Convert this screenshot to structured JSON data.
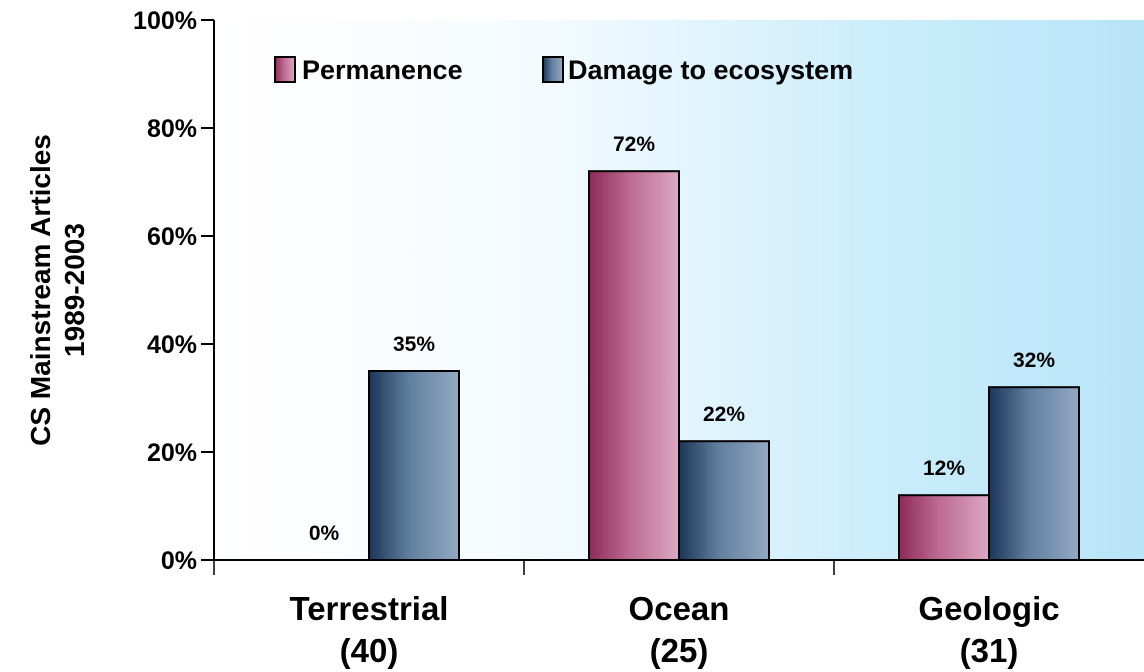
{
  "chart_data": {
    "type": "bar",
    "categories": [
      "Terrestrial",
      "Ocean",
      "Geologic"
    ],
    "category_counts": [
      "(40)",
      "(25)",
      "(31)"
    ],
    "series": [
      {
        "name": "Permanence",
        "values": [
          0,
          72,
          12
        ],
        "labels": [
          "0%",
          "72%",
          "12%"
        ],
        "color": "#b5638a"
      },
      {
        "name": "Damage to ecosystem",
        "values": [
          35,
          22,
          32
        ],
        "labels": [
          "35%",
          "22%",
          "32%"
        ],
        "color": "#5f7fa3"
      }
    ],
    "ylabel_line1": "CS Mainstream Articles",
    "ylabel_line2": "1989-2003",
    "yticks": [
      "0%",
      "20%",
      "40%",
      "60%",
      "80%",
      "100%"
    ],
    "ylim": [
      0,
      100
    ],
    "legend_position": "top-left",
    "grid": false
  }
}
